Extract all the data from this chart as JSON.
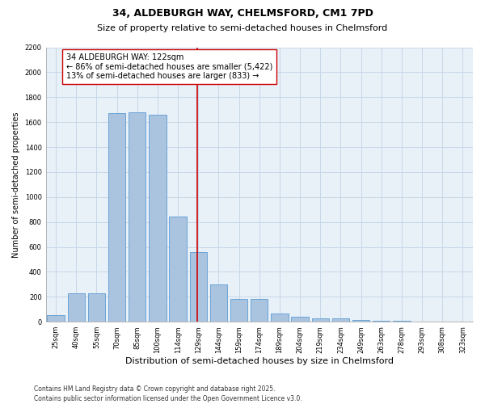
{
  "title": "34, ALDEBURGH WAY, CHELMSFORD, CM1 7PD",
  "subtitle": "Size of property relative to semi-detached houses in Chelmsford",
  "xlabel": "Distribution of semi-detached houses by size in Chelmsford",
  "ylabel": "Number of semi-detached properties",
  "categories": [
    "25sqm",
    "40sqm",
    "55sqm",
    "70sqm",
    "85sqm",
    "100sqm",
    "114sqm",
    "129sqm",
    "144sqm",
    "159sqm",
    "174sqm",
    "189sqm",
    "204sqm",
    "219sqm",
    "234sqm",
    "249sqm",
    "263sqm",
    "278sqm",
    "293sqm",
    "308sqm",
    "323sqm"
  ],
  "values": [
    50,
    225,
    225,
    1675,
    1680,
    1660,
    845,
    560,
    300,
    180,
    180,
    65,
    40,
    30,
    25,
    15,
    10,
    5,
    3,
    2,
    0
  ],
  "bar_color": "#aac4e0",
  "bar_edge_color": "#5b9bd5",
  "vline_color": "#cc0000",
  "vline_pos": 6.95,
  "annotation_text": "34 ALDEBURGH WAY: 122sqm\n← 86% of semi-detached houses are smaller (5,422)\n13% of semi-detached houses are larger (833) →",
  "annotation_box_color": "#ffffff",
  "annotation_box_edge": "#cc0000",
  "ylim": [
    0,
    2200
  ],
  "yticks": [
    0,
    200,
    400,
    600,
    800,
    1000,
    1200,
    1400,
    1600,
    1800,
    2000,
    2200
  ],
  "grid_color": "#c8d8e8",
  "bg_color": "#e8f0f8",
  "footer": "Contains HM Land Registry data © Crown copyright and database right 2025.\nContains public sector information licensed under the Open Government Licence v3.0.",
  "title_fontsize": 9,
  "subtitle_fontsize": 8,
  "xlabel_fontsize": 8,
  "ylabel_fontsize": 7,
  "tick_fontsize": 6,
  "annotation_fontsize": 7,
  "footer_fontsize": 5.5
}
